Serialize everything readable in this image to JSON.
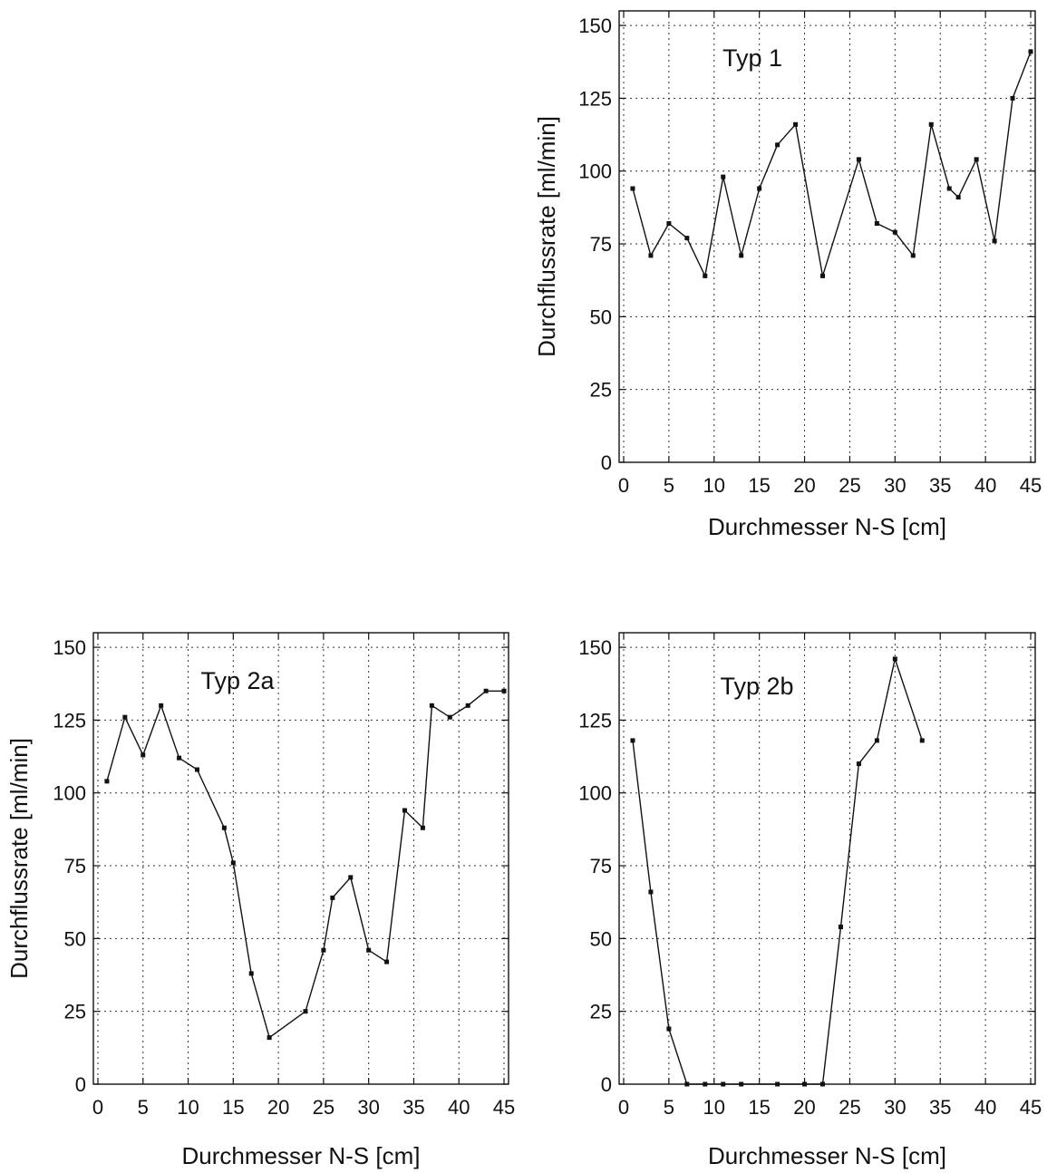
{
  "chart_data": [
    {
      "type": "line",
      "title": "Typ 1",
      "xlabel": "Durchmesser N-S [cm]",
      "ylabel": "Durchflussrate [ml/min]",
      "xlim": [
        -0.5,
        45.5
      ],
      "ylim": [
        0,
        155
      ],
      "xticks": [
        0,
        5,
        10,
        15,
        20,
        25,
        30,
        35,
        40,
        45
      ],
      "yticks": [
        0,
        25,
        50,
        75,
        100,
        125,
        150
      ],
      "grid": true,
      "x": [
        1,
        3,
        5,
        7,
        9,
        11,
        13,
        15,
        17,
        19,
        22,
        26,
        28,
        30,
        32,
        34,
        36,
        37,
        39,
        41,
        43,
        45
      ],
      "y": [
        94,
        71,
        82,
        77,
        64,
        98,
        71,
        94,
        109,
        116,
        64,
        104,
        82,
        79,
        71,
        116,
        94,
        91,
        104,
        76,
        125,
        141
      ]
    },
    {
      "type": "line",
      "title": "Typ 2a",
      "xlabel": "Durchmesser N-S [cm]",
      "ylabel": "Durchflussrate [ml/min]",
      "xlim": [
        -0.5,
        45.5
      ],
      "ylim": [
        0,
        155
      ],
      "xticks": [
        0,
        5,
        10,
        15,
        20,
        25,
        30,
        35,
        40,
        45
      ],
      "yticks": [
        0,
        25,
        50,
        75,
        100,
        125,
        150
      ],
      "grid": true,
      "x": [
        1,
        3,
        5,
        7,
        9,
        11,
        14,
        15,
        17,
        19,
        23,
        25,
        26,
        28,
        30,
        32,
        34,
        36,
        37,
        39,
        41,
        43,
        45
      ],
      "y": [
        104,
        126,
        113,
        130,
        112,
        108,
        88,
        76,
        38,
        16,
        25,
        46,
        64,
        71,
        46,
        42,
        94,
        88,
        130,
        126,
        130,
        135,
        135
      ]
    },
    {
      "type": "line",
      "title": "Typ 2b",
      "xlabel": "Durchmesser N-S [cm]",
      "ylabel": "",
      "xlim": [
        -0.5,
        45.5
      ],
      "ylim": [
        0,
        155
      ],
      "xticks": [
        0,
        5,
        10,
        15,
        20,
        25,
        30,
        35,
        40,
        45
      ],
      "yticks": [
        0,
        25,
        50,
        75,
        100,
        125,
        150
      ],
      "grid": true,
      "x": [
        1,
        3,
        5,
        7,
        9,
        11,
        13,
        17,
        20,
        22,
        24,
        26,
        28,
        30,
        33
      ],
      "y": [
        118,
        66,
        19,
        0,
        0,
        0,
        0,
        0,
        0,
        0,
        54,
        110,
        118,
        146,
        118
      ]
    }
  ]
}
